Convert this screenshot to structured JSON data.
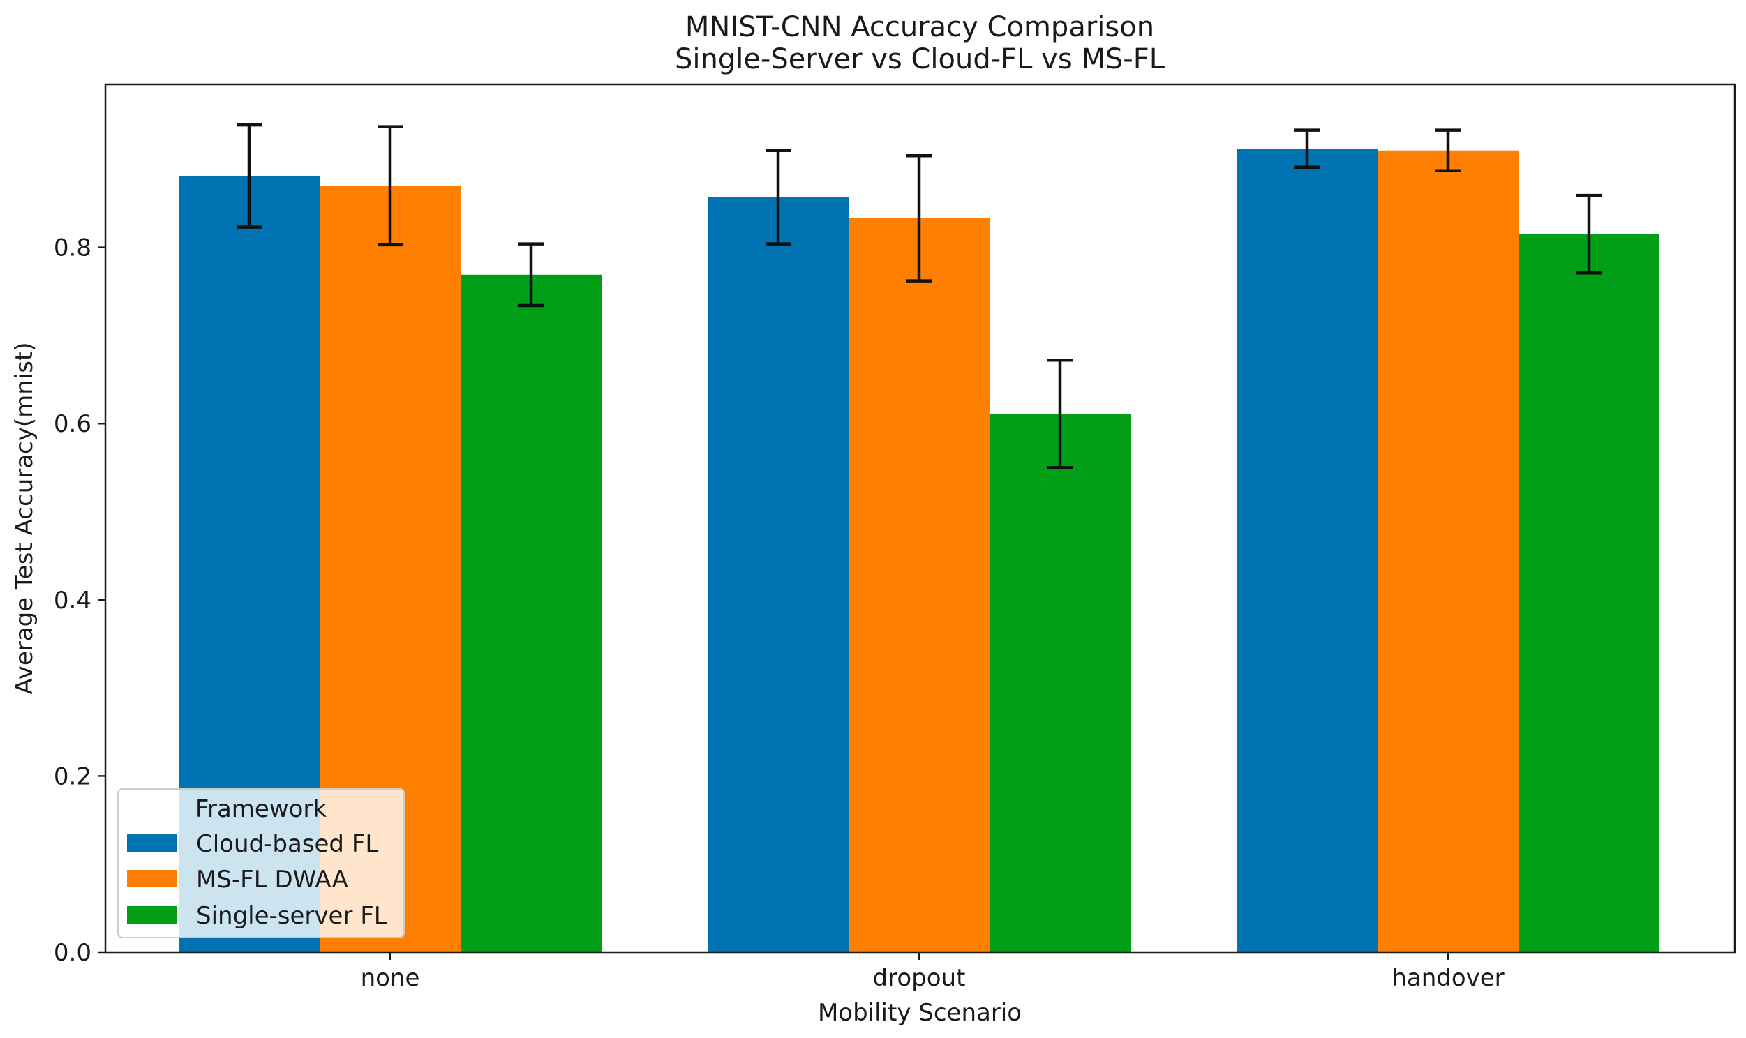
{
  "chart_data": {
    "type": "bar",
    "title": "MNIST-CNN Accuracy Comparison",
    "subtitle": "Single-Server vs Cloud-FL vs MS-FL",
    "xlabel": "Mobility Scenario",
    "ylabel": "Average Test Accuracy(mnist)",
    "categories": [
      "none",
      "dropout",
      "handover"
    ],
    "ylim": [
      0,
      0.985
    ],
    "yticks": [
      0.0,
      0.2,
      0.4,
      0.6,
      0.8
    ],
    "ytick_labels": [
      "0.0",
      "0.2",
      "0.4",
      "0.6",
      "0.8"
    ],
    "grid": false,
    "legend": {
      "title": "Framework",
      "position": "lower-left"
    },
    "series": [
      {
        "name": "Cloud-based FL",
        "color": "#0173b2",
        "values": [
          0.881,
          0.857,
          0.912
        ],
        "errors": [
          0.058,
          0.053,
          0.021
        ]
      },
      {
        "name": "MS-FL DWAA",
        "color": "#ff7f00",
        "values": [
          0.87,
          0.833,
          0.91
        ],
        "errors": [
          0.067,
          0.071,
          0.023
        ]
      },
      {
        "name": "Single-server FL",
        "color": "#029e18",
        "values": [
          0.769,
          0.611,
          0.815
        ],
        "errors": [
          0.035,
          0.061,
          0.044
        ]
      }
    ]
  }
}
